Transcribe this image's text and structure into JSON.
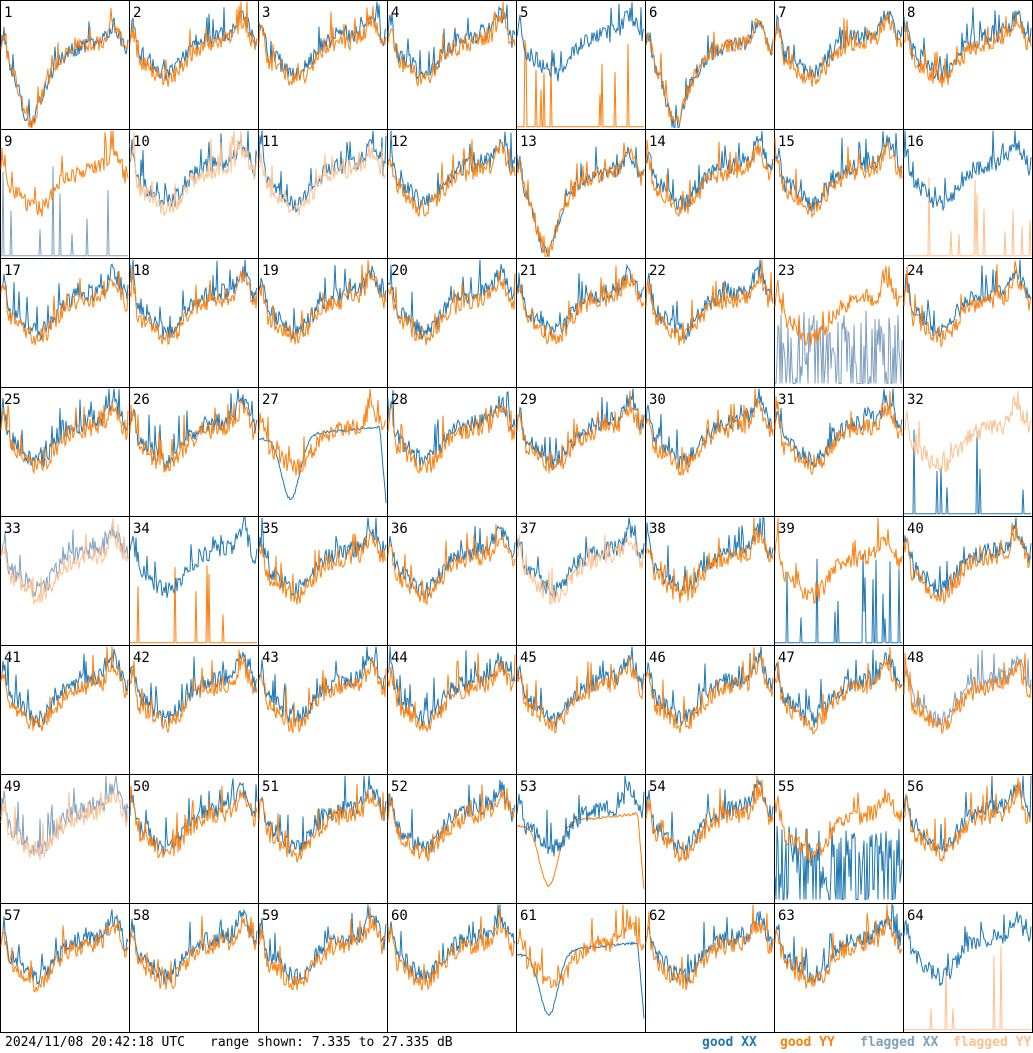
{
  "colors": {
    "good_xx": "#1f77b4",
    "good_yy": "#ff7f0e",
    "flagged_xx": "#7f9fbf",
    "flagged_yy": "#ffc08f",
    "border": "#000000",
    "background": "#ffffff"
  },
  "footer": {
    "timestamp": "2024/11/08 20:42:18 UTC",
    "range": "range shown: 7.335 to 27.335 dB",
    "legend": {
      "good_xx": "good XX",
      "good_yy": "good YY",
      "flagged_xx": "flagged XX",
      "flagged_yy": "flagged YY"
    }
  },
  "chart_data": {
    "type": "line",
    "layout": "small multiples, 8 x 8 grid",
    "y_range_db": [
      7.335,
      27.335
    ],
    "panels": [
      {
        "label": "1",
        "xx": "good",
        "yy": "good",
        "shape": "deep"
      },
      {
        "label": "2",
        "xx": "good",
        "yy": "good",
        "shape": "normal"
      },
      {
        "label": "3",
        "xx": "good",
        "yy": "good",
        "shape": "normal"
      },
      {
        "label": "4",
        "xx": "good",
        "yy": "good",
        "shape": "normal"
      },
      {
        "label": "5",
        "xx": "good",
        "yy": "good",
        "shape": "yy_spiky_low"
      },
      {
        "label": "6",
        "xx": "good",
        "yy": "good",
        "shape": "deep"
      },
      {
        "label": "7",
        "xx": "good",
        "yy": "good",
        "shape": "normal"
      },
      {
        "label": "8",
        "xx": "good",
        "yy": "good",
        "shape": "normal"
      },
      {
        "label": "9",
        "xx": "flagged",
        "yy": "good",
        "shape": "xx_spiky_low"
      },
      {
        "label": "10",
        "xx": "good",
        "yy": "flagged",
        "shape": "normal"
      },
      {
        "label": "11",
        "xx": "good",
        "yy": "flagged",
        "shape": "normal"
      },
      {
        "label": "12",
        "xx": "good",
        "yy": "good",
        "shape": "normal"
      },
      {
        "label": "13",
        "xx": "good",
        "yy": "good",
        "shape": "deep"
      },
      {
        "label": "14",
        "xx": "good",
        "yy": "good",
        "shape": "normal"
      },
      {
        "label": "15",
        "xx": "good",
        "yy": "good",
        "shape": "normal"
      },
      {
        "label": "16",
        "xx": "good",
        "yy": "flagged",
        "shape": "yy_spiky_low"
      },
      {
        "label": "17",
        "xx": "good",
        "yy": "good",
        "shape": "normal"
      },
      {
        "label": "18",
        "xx": "good",
        "yy": "good",
        "shape": "normal"
      },
      {
        "label": "19",
        "xx": "good",
        "yy": "good",
        "shape": "normal"
      },
      {
        "label": "20",
        "xx": "good",
        "yy": "good",
        "shape": "normal"
      },
      {
        "label": "21",
        "xx": "good",
        "yy": "good",
        "shape": "normal"
      },
      {
        "label": "22",
        "xx": "good",
        "yy": "good",
        "shape": "normal"
      },
      {
        "label": "23",
        "xx": "flagged",
        "yy": "good",
        "shape": "xx_noisy_low"
      },
      {
        "label": "24",
        "xx": "good",
        "yy": "good",
        "shape": "normal"
      },
      {
        "label": "25",
        "xx": "good",
        "yy": "good",
        "shape": "normal"
      },
      {
        "label": "26",
        "xx": "good",
        "yy": "good",
        "shape": "normal"
      },
      {
        "label": "27",
        "xx": "good",
        "yy": "good",
        "shape": "xx_deep"
      },
      {
        "label": "28",
        "xx": "good",
        "yy": "good",
        "shape": "normal"
      },
      {
        "label": "29",
        "xx": "good",
        "yy": "good",
        "shape": "normal"
      },
      {
        "label": "30",
        "xx": "good",
        "yy": "good",
        "shape": "normal"
      },
      {
        "label": "31",
        "xx": "good",
        "yy": "good",
        "shape": "normal"
      },
      {
        "label": "32",
        "xx": "good",
        "yy": "flagged",
        "shape": "xx_spiky_low"
      },
      {
        "label": "33",
        "xx": "flagged",
        "yy": "flagged",
        "shape": "normal"
      },
      {
        "label": "34",
        "xx": "good",
        "yy": "good",
        "shape": "yy_spiky_low"
      },
      {
        "label": "35",
        "xx": "good",
        "yy": "good",
        "shape": "normal"
      },
      {
        "label": "36",
        "xx": "good",
        "yy": "good",
        "shape": "normal"
      },
      {
        "label": "37",
        "xx": "good",
        "yy": "flagged",
        "shape": "normal"
      },
      {
        "label": "38",
        "xx": "good",
        "yy": "good",
        "shape": "normal"
      },
      {
        "label": "39",
        "xx": "good",
        "yy": "good",
        "shape": "xx_spiky_low"
      },
      {
        "label": "40",
        "xx": "good",
        "yy": "good",
        "shape": "normal"
      },
      {
        "label": "41",
        "xx": "good",
        "yy": "good",
        "shape": "normal"
      },
      {
        "label": "42",
        "xx": "good",
        "yy": "good",
        "shape": "normal"
      },
      {
        "label": "43",
        "xx": "good",
        "yy": "good",
        "shape": "normal"
      },
      {
        "label": "44",
        "xx": "good",
        "yy": "good",
        "shape": "normal"
      },
      {
        "label": "45",
        "xx": "good",
        "yy": "good",
        "shape": "normal"
      },
      {
        "label": "46",
        "xx": "good",
        "yy": "good",
        "shape": "normal"
      },
      {
        "label": "47",
        "xx": "good",
        "yy": "good",
        "shape": "normal"
      },
      {
        "label": "48",
        "xx": "flagged",
        "yy": "good",
        "shape": "normal"
      },
      {
        "label": "49",
        "xx": "flagged",
        "yy": "flagged",
        "shape": "normal"
      },
      {
        "label": "50",
        "xx": "good",
        "yy": "good",
        "shape": "normal"
      },
      {
        "label": "51",
        "xx": "good",
        "yy": "good",
        "shape": "normal"
      },
      {
        "label": "52",
        "xx": "good",
        "yy": "good",
        "shape": "normal"
      },
      {
        "label": "53",
        "xx": "good",
        "yy": "good",
        "shape": "yy_deep"
      },
      {
        "label": "54",
        "xx": "good",
        "yy": "good",
        "shape": "normal"
      },
      {
        "label": "55",
        "xx": "good",
        "yy": "good",
        "shape": "xx_noisy_low"
      },
      {
        "label": "56",
        "xx": "good",
        "yy": "good",
        "shape": "normal"
      },
      {
        "label": "57",
        "xx": "good",
        "yy": "good",
        "shape": "normal"
      },
      {
        "label": "58",
        "xx": "good",
        "yy": "good",
        "shape": "normal"
      },
      {
        "label": "59",
        "xx": "good",
        "yy": "good",
        "shape": "normal"
      },
      {
        "label": "60",
        "xx": "good",
        "yy": "good",
        "shape": "normal"
      },
      {
        "label": "61",
        "xx": "good",
        "yy": "good",
        "shape": "xx_deep"
      },
      {
        "label": "62",
        "xx": "good",
        "yy": "good",
        "shape": "normal"
      },
      {
        "label": "63",
        "xx": "good",
        "yy": "good",
        "shape": "normal"
      },
      {
        "label": "64",
        "xx": "good",
        "yy": "flagged",
        "shape": "yy_spiky_low"
      }
    ]
  }
}
